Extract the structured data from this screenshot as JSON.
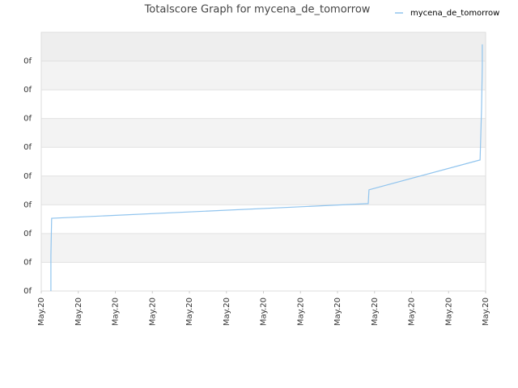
{
  "chart_data": {
    "type": "line",
    "title": "Totalscore Graph for mycena_de_tomorrow",
    "series": [
      {
        "name": "mycena_de_tomorrow",
        "color": "#90c4ee",
        "x": [
          0.26,
          0.26,
          0.28,
          8.83,
          8.85,
          11.85,
          11.89,
          11.91,
          11.91
        ],
        "values": [
          0,
          1.24,
          2.53,
          3.04,
          3.52,
          4.56,
          6.33,
          7.82,
          8.58
        ]
      }
    ],
    "xlim": [
      0,
      12
    ],
    "xticks": [
      {
        "value": 0,
        "label": "May.20"
      },
      {
        "value": 1,
        "label": "May.20"
      },
      {
        "value": 2,
        "label": "May.20"
      },
      {
        "value": 3,
        "label": "May.20"
      },
      {
        "value": 4,
        "label": "May.20"
      },
      {
        "value": 5,
        "label": "May.20"
      },
      {
        "value": 6,
        "label": "May.20"
      },
      {
        "value": 7,
        "label": "May.20"
      },
      {
        "value": 8,
        "label": "May.20"
      },
      {
        "value": 9,
        "label": "May.20"
      },
      {
        "value": 10,
        "label": "May.20"
      },
      {
        "value": 11,
        "label": "May.20"
      },
      {
        "value": 12,
        "label": "May.20"
      }
    ],
    "ylim": [
      0,
      9
    ],
    "yticks": [
      {
        "value": 0,
        "label": "0f"
      },
      {
        "value": 1,
        "label": "0f"
      },
      {
        "value": 2,
        "label": "0f"
      },
      {
        "value": 3,
        "label": "0f"
      },
      {
        "value": 4,
        "label": "0f"
      },
      {
        "value": 5,
        "label": "0f"
      },
      {
        "value": 6,
        "label": "0f"
      },
      {
        "value": 7,
        "label": "0f"
      },
      {
        "value": 8,
        "label": "0f"
      }
    ],
    "grid": true,
    "legend": "top-right"
  }
}
